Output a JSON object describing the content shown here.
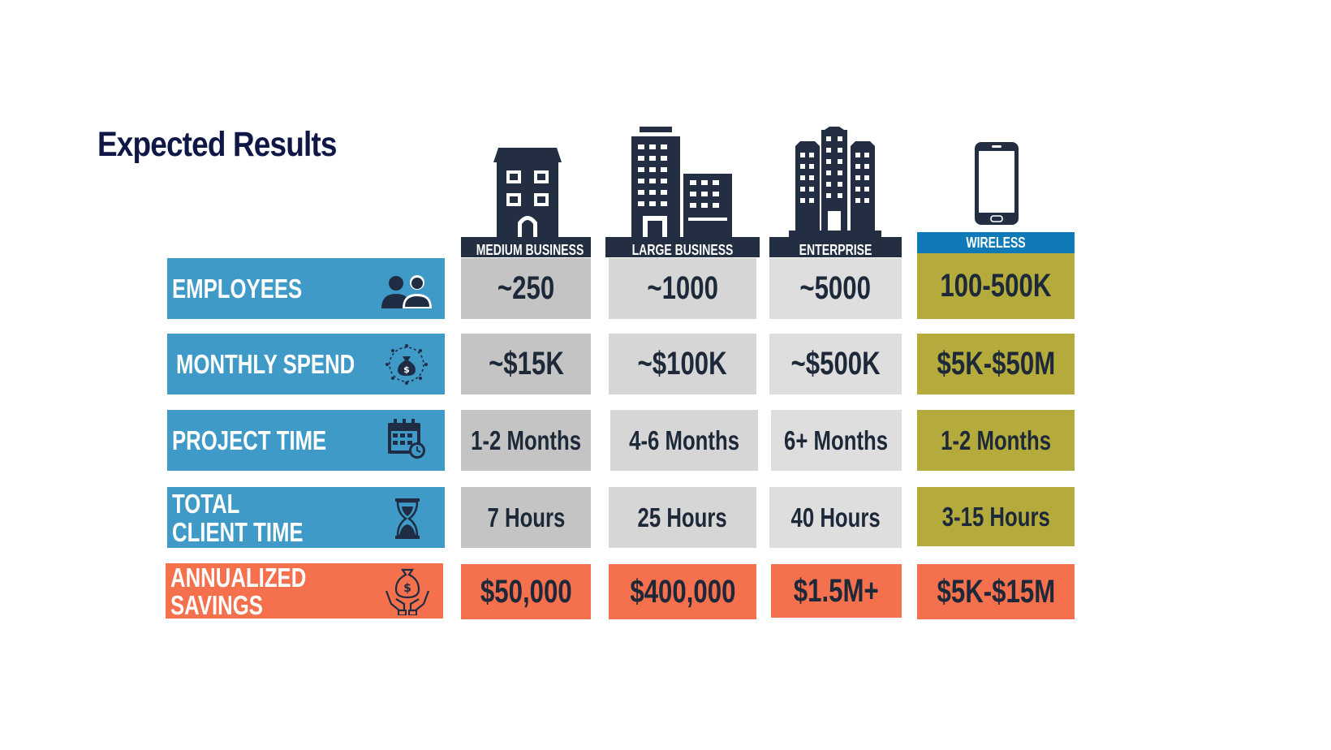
{
  "title": "Expected Results",
  "colors": {
    "title": "#0e1746",
    "row_blue": "#3f9ac7",
    "row_orange": "#f5704d",
    "header_dark": "#232e43",
    "header_wireless": "#0f7ab7",
    "cell_grey": "#c4c4c4",
    "cell_gold": "#b4ab3c",
    "cell_orange": "#f5704d"
  },
  "columns": [
    {
      "label": "MEDIUM BUSINESS",
      "icon": "small-building-icon"
    },
    {
      "label": "LARGE BUSINESS",
      "icon": "large-buildings-icon"
    },
    {
      "label": "ENTERPRISE",
      "icon": "skyscrapers-icon"
    },
    {
      "label": "WIRELESS",
      "icon": "smartphone-icon"
    }
  ],
  "rows": [
    {
      "label": "EMPLOYEES",
      "icon": "people-icon",
      "values": [
        "~250",
        "~1000",
        "~5000",
        "100-500K"
      ]
    },
    {
      "label": "MONTHLY SPEND",
      "icon": "money-bag-arrows-icon",
      "values": [
        "~$15K",
        "~$100K",
        "~$500K",
        "$5K-$50M"
      ]
    },
    {
      "label": "PROJECT TIME",
      "icon": "calendar-clock-icon",
      "values": [
        "1-2 Months",
        "4-6 Months",
        "6+ Months",
        "1-2 Months"
      ]
    },
    {
      "label_line1": "TOTAL",
      "label_line2": "CLIENT TIME",
      "icon": "hourglass-icon",
      "values": [
        "7 Hours",
        "25 Hours",
        "40 Hours",
        "3-15 Hours"
      ]
    },
    {
      "label_line1": "ANNUALIZED",
      "label_line2": "SAVINGS",
      "icon": "money-bag-hands-icon",
      "values": [
        "$50,000",
        "$400,000",
        "$1.5M+",
        "$5K-$15M"
      ]
    }
  ]
}
